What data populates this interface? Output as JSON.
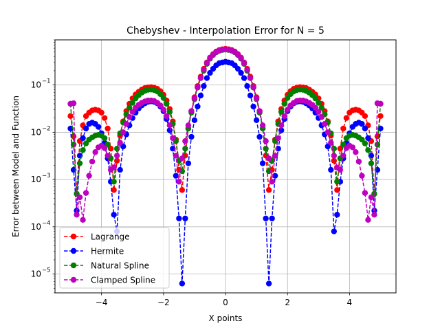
{
  "chart_data": {
    "type": "line",
    "title": "Chebyshev - Interpolation Error for N = 5",
    "xlabel": "X points",
    "ylabel": "Error between Model and Function",
    "xlim": [
      -5.5,
      5.5
    ],
    "ylim": [
      4e-06,
      0.9
    ],
    "yscale": "log",
    "grid": true,
    "legend_position": "lower-left",
    "x_ticks": [
      {
        "value": -4,
        "label": "−4"
      },
      {
        "value": -2,
        "label": "−2"
      },
      {
        "value": 0,
        "label": "0"
      },
      {
        "value": 2,
        "label": "2"
      },
      {
        "value": 4,
        "label": "4"
      }
    ],
    "y_ticks": [
      {
        "value": 1e-05,
        "base": "10",
        "exp": "−5"
      },
      {
        "value": 0.0001,
        "base": "10",
        "exp": "−4"
      },
      {
        "value": 0.001,
        "base": "10",
        "exp": "−3"
      },
      {
        "value": 0.01,
        "base": "10",
        "exp": "−2"
      },
      {
        "value": 0.1,
        "base": "10",
        "exp": "−1"
      }
    ],
    "series": [
      {
        "name": "Lagrange",
        "color": "#ff0000",
        "x": [
          -5.0,
          -4.9,
          -4.8,
          -4.7,
          -4.6,
          -4.5,
          -4.4,
          -4.3,
          -4.2,
          -4.1,
          -4.0,
          -3.9,
          -3.8,
          -3.7,
          -3.6,
          -3.5,
          -3.4,
          -3.3,
          -3.2,
          -3.1,
          -3.0,
          -2.9,
          -2.8,
          -2.7,
          -2.6,
          -2.5,
          -2.4,
          -2.3,
          -2.2,
          -2.1,
          -2.0,
          -1.9,
          -1.8,
          -1.7,
          -1.6,
          -1.5,
          -1.4,
          -1.3,
          -1.2,
          -1.1,
          -1.0,
          -0.9,
          -0.8,
          -0.7,
          -0.6,
          -0.5,
          -0.4,
          -0.3,
          -0.2,
          -0.1,
          0.0,
          0.1,
          0.2,
          0.3,
          0.4,
          0.5,
          0.6,
          0.7,
          0.8,
          0.9,
          1.0,
          1.1,
          1.2,
          1.3,
          1.4,
          1.5,
          1.6,
          1.7,
          1.8,
          1.9,
          2.0,
          2.1,
          2.2,
          2.3,
          2.4,
          2.5,
          2.6,
          2.7,
          2.8,
          2.9,
          3.0,
          3.1,
          3.2,
          3.3,
          3.4,
          3.5,
          3.6,
          3.7,
          3.8,
          3.9,
          4.0,
          4.1,
          4.2,
          4.3,
          4.4,
          4.5,
          4.6,
          4.7,
          4.8,
          4.9,
          5.0
        ],
        "y": [
          0.022,
          0.0082,
          0.0005,
          0.0065,
          0.014,
          0.022,
          0.026,
          0.029,
          0.03,
          0.029,
          0.026,
          0.02,
          0.012,
          0.0045,
          0.0006,
          0.0025,
          0.0085,
          0.017,
          0.028,
          0.04,
          0.052,
          0.063,
          0.072,
          0.08,
          0.086,
          0.089,
          0.09,
          0.088,
          0.083,
          0.074,
          0.062,
          0.047,
          0.031,
          0.017,
          0.007,
          0.0016,
          0.0006,
          0.0032,
          0.012,
          0.028,
          0.055,
          0.095,
          0.15,
          0.22,
          0.3,
          0.38,
          0.45,
          0.51,
          0.55,
          0.57,
          0.58,
          0.57,
          0.55,
          0.51,
          0.45,
          0.38,
          0.3,
          0.22,
          0.15,
          0.095,
          0.055,
          0.028,
          0.012,
          0.0032,
          0.0006,
          0.0016,
          0.007,
          0.017,
          0.031,
          0.047,
          0.062,
          0.074,
          0.083,
          0.088,
          0.09,
          0.089,
          0.086,
          0.08,
          0.072,
          0.063,
          0.052,
          0.04,
          0.028,
          0.017,
          0.0085,
          0.0025,
          0.0006,
          0.0045,
          0.012,
          0.02,
          0.026,
          0.029,
          0.03,
          0.029,
          0.026,
          0.022,
          0.014,
          0.0065,
          0.0005,
          0.0082,
          0.022
        ]
      },
      {
        "name": "Hermite",
        "color": "#0000ff",
        "x": [
          -5.0,
          -4.9,
          -4.8,
          -4.7,
          -4.6,
          -4.5,
          -4.4,
          -4.3,
          -4.2,
          -4.1,
          -4.0,
          -3.9,
          -3.8,
          -3.7,
          -3.6,
          -3.5,
          -3.4,
          -3.3,
          -3.2,
          -3.1,
          -3.0,
          -2.9,
          -2.8,
          -2.7,
          -2.6,
          -2.5,
          -2.4,
          -2.3,
          -2.2,
          -2.1,
          -2.0,
          -1.9,
          -1.8,
          -1.7,
          -1.6,
          -1.5,
          -1.4,
          -1.3,
          -1.2,
          -1.1,
          -1.0,
          -0.9,
          -0.8,
          -0.7,
          -0.6,
          -0.5,
          -0.4,
          -0.3,
          -0.2,
          -0.1,
          0.0,
          0.1,
          0.2,
          0.3,
          0.4,
          0.5,
          0.6,
          0.7,
          0.8,
          0.9,
          1.0,
          1.1,
          1.2,
          1.3,
          1.4,
          1.5,
          1.6,
          1.7,
          1.8,
          1.9,
          2.0,
          2.1,
          2.2,
          2.3,
          2.4,
          2.5,
          2.6,
          2.7,
          2.8,
          2.9,
          3.0,
          3.1,
          3.2,
          3.3,
          3.4,
          3.5,
          3.6,
          3.7,
          3.8,
          3.9,
          4.0,
          4.1,
          4.2,
          4.3,
          4.4,
          4.5,
          4.6,
          4.7,
          4.8,
          4.9,
          5.0
        ],
        "y": [
          0.012,
          0.0016,
          0.00022,
          0.0032,
          0.0075,
          0.012,
          0.015,
          0.016,
          0.015,
          0.013,
          0.0095,
          0.006,
          0.0028,
          0.0009,
          0.00018,
          8e-05,
          0.0016,
          0.005,
          0.009,
          0.014,
          0.02,
          0.026,
          0.032,
          0.037,
          0.041,
          0.044,
          0.045,
          0.044,
          0.041,
          0.035,
          0.028,
          0.019,
          0.011,
          0.0045,
          0.0012,
          0.00015,
          6.3e-06,
          0.00015,
          0.0022,
          0.008,
          0.018,
          0.035,
          0.06,
          0.095,
          0.14,
          0.18,
          0.22,
          0.26,
          0.29,
          0.3,
          0.31,
          0.3,
          0.29,
          0.26,
          0.22,
          0.18,
          0.14,
          0.095,
          0.06,
          0.035,
          0.018,
          0.008,
          0.0022,
          0.00015,
          6.3e-06,
          0.00015,
          0.0012,
          0.0045,
          0.011,
          0.019,
          0.028,
          0.035,
          0.041,
          0.044,
          0.045,
          0.044,
          0.041,
          0.037,
          0.032,
          0.026,
          0.02,
          0.014,
          0.009,
          0.005,
          0.0016,
          8e-05,
          0.00018,
          0.0009,
          0.0028,
          0.006,
          0.0095,
          0.013,
          0.015,
          0.016,
          0.015,
          0.012,
          0.0075,
          0.0032,
          0.00022,
          0.0016,
          0.012
        ]
      },
      {
        "name": "Natural Spline",
        "color": "#008000",
        "x": [
          -5.0,
          -4.9,
          -4.8,
          -4.7,
          -4.6,
          -4.5,
          -4.4,
          -4.3,
          -4.2,
          -4.1,
          -4.0,
          -3.9,
          -3.8,
          -3.7,
          -3.6,
          -3.5,
          -3.4,
          -3.3,
          -3.2,
          -3.1,
          -3.0,
          -2.9,
          -2.8,
          -2.7,
          -2.6,
          -2.5,
          -2.4,
          -2.3,
          -2.2,
          -2.1,
          -2.0,
          -1.9,
          -1.8,
          -1.7,
          -1.6,
          -1.5,
          -1.4,
          -1.3,
          -1.2,
          -1.1,
          -1.0,
          -0.9,
          -0.8,
          -0.7,
          -0.6,
          -0.5,
          -0.4,
          -0.3,
          -0.2,
          -0.1,
          0.0,
          0.1,
          0.2,
          0.3,
          0.4,
          0.5,
          0.6,
          0.7,
          0.8,
          0.9,
          1.0,
          1.1,
          1.2,
          1.3,
          1.4,
          1.5,
          1.6,
          1.7,
          1.8,
          1.9,
          2.0,
          2.1,
          2.2,
          2.3,
          2.4,
          2.5,
          2.6,
          2.7,
          2.8,
          2.9,
          3.0,
          3.1,
          3.2,
          3.3,
          3.4,
          3.5,
          3.6,
          3.7,
          3.8,
          3.9,
          4.0,
          4.1,
          4.2,
          4.3,
          4.4,
          4.5,
          4.6,
          4.7,
          4.8,
          4.9,
          5.0
        ],
        "y": [
          0.04,
          0.0055,
          0.0005,
          0.0022,
          0.0042,
          0.0058,
          0.007,
          0.0078,
          0.0085,
          0.0088,
          0.0085,
          0.0075,
          0.0055,
          0.0028,
          0.0009,
          0.0045,
          0.0095,
          0.016,
          0.024,
          0.033,
          0.042,
          0.052,
          0.061,
          0.069,
          0.075,
          0.079,
          0.08,
          0.078,
          0.073,
          0.064,
          0.053,
          0.04,
          0.027,
          0.015,
          0.0065,
          0.0025,
          0.0015,
          0.0045,
          0.012,
          0.026,
          0.05,
          0.088,
          0.14,
          0.2,
          0.28,
          0.36,
          0.43,
          0.49,
          0.53,
          0.55,
          0.56,
          0.55,
          0.53,
          0.49,
          0.43,
          0.36,
          0.28,
          0.2,
          0.14,
          0.088,
          0.05,
          0.026,
          0.012,
          0.0045,
          0.0015,
          0.0025,
          0.0065,
          0.015,
          0.027,
          0.04,
          0.053,
          0.064,
          0.073,
          0.078,
          0.08,
          0.079,
          0.075,
          0.069,
          0.061,
          0.052,
          0.042,
          0.033,
          0.024,
          0.016,
          0.0095,
          0.0045,
          0.0009,
          0.0028,
          0.0055,
          0.0075,
          0.0085,
          0.0088,
          0.0085,
          0.0078,
          0.007,
          0.0058,
          0.0042,
          0.0022,
          0.0005,
          0.0055,
          0.04
        ]
      },
      {
        "name": "Clamped Spline",
        "color": "#bf00bf",
        "x": [
          -5.0,
          -4.9,
          -4.8,
          -4.7,
          -4.6,
          -4.5,
          -4.4,
          -4.3,
          -4.2,
          -4.1,
          -4.0,
          -3.9,
          -3.8,
          -3.7,
          -3.6,
          -3.5,
          -3.4,
          -3.3,
          -3.2,
          -3.1,
          -3.0,
          -2.9,
          -2.8,
          -2.7,
          -2.6,
          -2.5,
          -2.4,
          -2.3,
          -2.2,
          -2.1,
          -2.0,
          -1.9,
          -1.8,
          -1.7,
          -1.6,
          -1.5,
          -1.4,
          -1.3,
          -1.2,
          -1.1,
          -1.0,
          -0.9,
          -0.8,
          -0.7,
          -0.6,
          -0.5,
          -0.4,
          -0.3,
          -0.2,
          -0.1,
          0.0,
          0.1,
          0.2,
          0.3,
          0.4,
          0.5,
          0.6,
          0.7,
          0.8,
          0.9,
          1.0,
          1.1,
          1.2,
          1.3,
          1.4,
          1.5,
          1.6,
          1.7,
          1.8,
          1.9,
          2.0,
          2.1,
          2.2,
          2.3,
          2.4,
          2.5,
          2.6,
          2.7,
          2.8,
          2.9,
          3.0,
          3.1,
          3.2,
          3.3,
          3.4,
          3.5,
          3.6,
          3.7,
          3.8,
          3.9,
          4.0,
          4.1,
          4.2,
          4.3,
          4.4,
          4.5,
          4.6,
          4.7,
          4.8,
          4.9,
          5.0
        ],
        "y": [
          0.04,
          0.041,
          0.00018,
          0.00042,
          0.00014,
          0.00052,
          0.0012,
          0.0024,
          0.0038,
          0.0048,
          0.0052,
          0.0046,
          0.0032,
          0.0016,
          0.0018,
          0.0032,
          0.006,
          0.01,
          0.015,
          0.021,
          0.027,
          0.033,
          0.038,
          0.042,
          0.045,
          0.047,
          0.047,
          0.046,
          0.042,
          0.037,
          0.03,
          0.022,
          0.014,
          0.0075,
          0.0032,
          0.0009,
          0.0028,
          0.0065,
          0.014,
          0.028,
          0.052,
          0.09,
          0.14,
          0.21,
          0.29,
          0.37,
          0.44,
          0.5,
          0.54,
          0.56,
          0.57,
          0.56,
          0.54,
          0.5,
          0.44,
          0.37,
          0.29,
          0.21,
          0.14,
          0.09,
          0.052,
          0.028,
          0.014,
          0.0065,
          0.0028,
          0.0009,
          0.0032,
          0.0075,
          0.014,
          0.022,
          0.03,
          0.037,
          0.042,
          0.046,
          0.047,
          0.047,
          0.045,
          0.042,
          0.038,
          0.033,
          0.027,
          0.021,
          0.015,
          0.01,
          0.006,
          0.0032,
          0.0018,
          0.0016,
          0.0032,
          0.0046,
          0.0052,
          0.0048,
          0.0038,
          0.0024,
          0.0012,
          0.00052,
          0.00014,
          0.00042,
          0.00018,
          0.041,
          0.04
        ]
      }
    ]
  }
}
